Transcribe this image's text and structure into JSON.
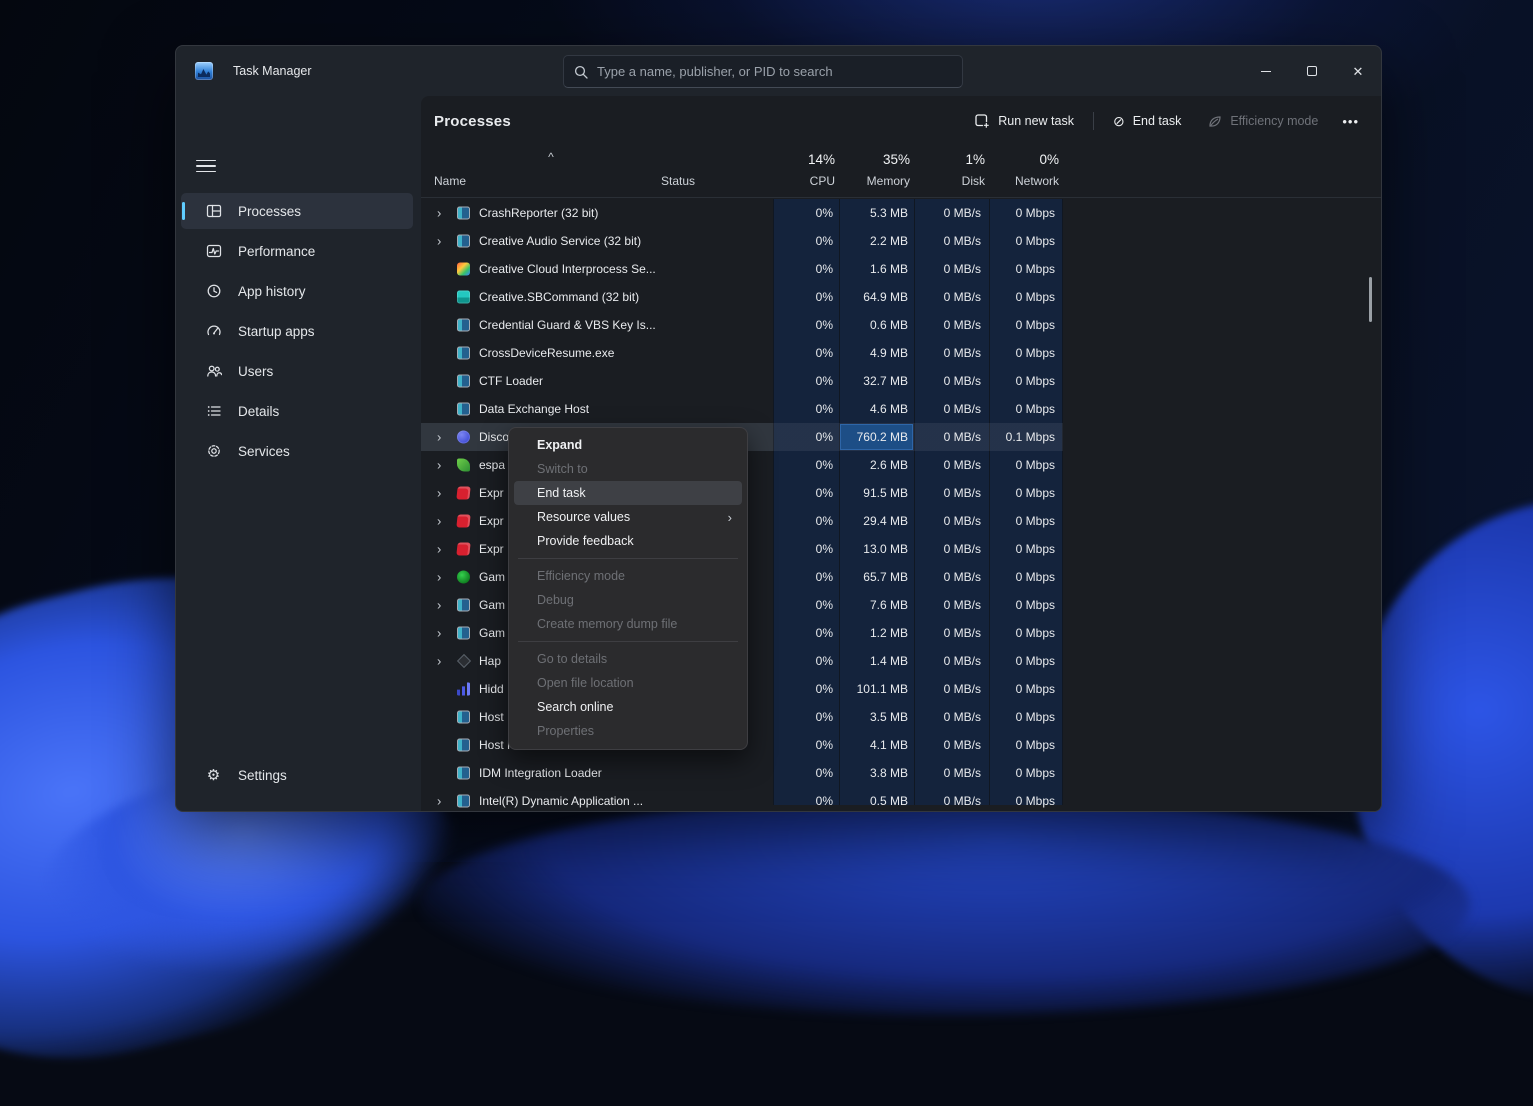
{
  "window": {
    "title": "Task Manager",
    "controls": {
      "minimize": "minimize",
      "maximize": "maximize",
      "close": "✕"
    }
  },
  "search": {
    "placeholder": "Type a name, publisher, or PID to search"
  },
  "sidebar": {
    "items": [
      {
        "id": "processes",
        "label": "Processes",
        "selected": true
      },
      {
        "id": "performance",
        "label": "Performance",
        "selected": false
      },
      {
        "id": "app-history",
        "label": "App history",
        "selected": false
      },
      {
        "id": "startup-apps",
        "label": "Startup apps",
        "selected": false
      },
      {
        "id": "users",
        "label": "Users",
        "selected": false
      },
      {
        "id": "details",
        "label": "Details",
        "selected": false
      },
      {
        "id": "services",
        "label": "Services",
        "selected": false
      }
    ],
    "settings_label": "Settings"
  },
  "header": {
    "title": "Processes"
  },
  "toolbar": {
    "run_new_task": "Run new task",
    "end_task": "End task",
    "efficiency_mode": "Efficiency mode",
    "efficiency_mode_disabled": true,
    "more": "•••"
  },
  "table": {
    "columns": {
      "name": "Name",
      "status": "Status",
      "cpu": {
        "percent": "14%",
        "label": "CPU"
      },
      "memory": {
        "percent": "35%",
        "label": "Memory"
      },
      "disk": {
        "percent": "1%",
        "label": "Disk"
      },
      "network": {
        "percent": "0%",
        "label": "Network"
      }
    },
    "rows": [
      {
        "name": "CrashReporter (32 bit)",
        "icon": "win",
        "chevron": true,
        "cpu": "0%",
        "memory": "5.3 MB",
        "disk": "0 MB/s",
        "network": "0 Mbps",
        "selected": false,
        "memory_hot": false
      },
      {
        "name": "Creative Audio Service (32 bit)",
        "icon": "win",
        "chevron": true,
        "cpu": "0%",
        "memory": "2.2 MB",
        "disk": "0 MB/s",
        "network": "0 Mbps",
        "selected": false,
        "memory_hot": false
      },
      {
        "name": "Creative Cloud Interprocess Se...",
        "icon": "cc",
        "chevron": false,
        "cpu": "0%",
        "memory": "1.6 MB",
        "disk": "0 MB/s",
        "network": "0 Mbps",
        "selected": false,
        "memory_hot": false
      },
      {
        "name": "Creative.SBCommand (32 bit)",
        "icon": "teal",
        "chevron": false,
        "cpu": "0%",
        "memory": "64.9 MB",
        "disk": "0 MB/s",
        "network": "0 Mbps",
        "selected": false,
        "memory_hot": false
      },
      {
        "name": "Credential Guard & VBS Key Is...",
        "icon": "win",
        "chevron": false,
        "cpu": "0%",
        "memory": "0.6 MB",
        "disk": "0 MB/s",
        "network": "0 Mbps",
        "selected": false,
        "memory_hot": false
      },
      {
        "name": "CrossDeviceResume.exe",
        "icon": "win",
        "chevron": false,
        "cpu": "0%",
        "memory": "4.9 MB",
        "disk": "0 MB/s",
        "network": "0 Mbps",
        "selected": false,
        "memory_hot": false
      },
      {
        "name": "CTF Loader",
        "icon": "win",
        "chevron": false,
        "cpu": "0%",
        "memory": "32.7 MB",
        "disk": "0 MB/s",
        "network": "0 Mbps",
        "selected": false,
        "memory_hot": false
      },
      {
        "name": "Data Exchange Host",
        "icon": "win",
        "chevron": false,
        "cpu": "0%",
        "memory": "4.6 MB",
        "disk": "0 MB/s",
        "network": "0 Mbps",
        "selected": false,
        "memory_hot": false
      },
      {
        "name": "Discord",
        "icon": "discord",
        "chevron": true,
        "cpu": "0%",
        "memory": "760.2 MB",
        "disk": "0 MB/s",
        "network": "0.1 Mbps",
        "selected": true,
        "memory_hot": true
      },
      {
        "name": "espa",
        "icon": "green",
        "chevron": true,
        "cpu": "0%",
        "memory": "2.6 MB",
        "disk": "0 MB/s",
        "network": "0 Mbps",
        "selected": false,
        "memory_hot": false
      },
      {
        "name": "Expr",
        "icon": "red",
        "chevron": true,
        "cpu": "0%",
        "memory": "91.5 MB",
        "disk": "0 MB/s",
        "network": "0 Mbps",
        "selected": false,
        "memory_hot": false
      },
      {
        "name": "Expr",
        "icon": "red",
        "chevron": true,
        "cpu": "0%",
        "memory": "29.4 MB",
        "disk": "0 MB/s",
        "network": "0 Mbps",
        "selected": false,
        "memory_hot": false
      },
      {
        "name": "Expr",
        "icon": "red",
        "chevron": true,
        "cpu": "0%",
        "memory": "13.0 MB",
        "disk": "0 MB/s",
        "network": "0 Mbps",
        "selected": false,
        "memory_hot": false
      },
      {
        "name": "Gam",
        "icon": "xbox",
        "chevron": true,
        "cpu": "0%",
        "memory": "65.7 MB",
        "disk": "0 MB/s",
        "network": "0 Mbps",
        "selected": false,
        "memory_hot": false
      },
      {
        "name": "Gam",
        "icon": "win",
        "chevron": true,
        "cpu": "0%",
        "memory": "7.6 MB",
        "disk": "0 MB/s",
        "network": "0 Mbps",
        "selected": false,
        "memory_hot": false
      },
      {
        "name": "Gam",
        "icon": "win",
        "chevron": true,
        "cpu": "0%",
        "memory": "1.2 MB",
        "disk": "0 MB/s",
        "network": "0 Mbps",
        "selected": false,
        "memory_hot": false
      },
      {
        "name": "Hap",
        "icon": "haptic",
        "chevron": true,
        "cpu": "0%",
        "memory": "1.4 MB",
        "disk": "0 MB/s",
        "network": "0 Mbps",
        "selected": false,
        "memory_hot": false
      },
      {
        "name": "Hidd",
        "icon": "bars",
        "chevron": false,
        "cpu": "0%",
        "memory": "101.1 MB",
        "disk": "0 MB/s",
        "network": "0 Mbps",
        "selected": false,
        "memory_hot": false
      },
      {
        "name": "Host",
        "icon": "win",
        "chevron": false,
        "cpu": "0%",
        "memory": "3.5 MB",
        "disk": "0 MB/s",
        "network": "0 Mbps",
        "selected": false,
        "memory_hot": false
      },
      {
        "name": "Host Process for Windows Tasks",
        "icon": "win",
        "chevron": false,
        "cpu": "0%",
        "memory": "4.1 MB",
        "disk": "0 MB/s",
        "network": "0 Mbps",
        "selected": false,
        "memory_hot": false
      },
      {
        "name": "IDM Integration Loader",
        "icon": "win",
        "chevron": false,
        "cpu": "0%",
        "memory": "3.8 MB",
        "disk": "0 MB/s",
        "network": "0 Mbps",
        "selected": false,
        "memory_hot": false
      },
      {
        "name": "Intel(R) Dynamic Application ...",
        "icon": "win",
        "chevron": true,
        "cpu": "0%",
        "memory": "0.5 MB",
        "disk": "0 MB/s",
        "network": "0 Mbps",
        "selected": false,
        "memory_hot": false
      }
    ]
  },
  "context_menu": {
    "items": [
      {
        "label": "Expand",
        "enabled": true,
        "hovered": false,
        "submenu": false,
        "strong": true
      },
      {
        "label": "Switch to",
        "enabled": false,
        "hovered": false,
        "submenu": false,
        "strong": false
      },
      {
        "label": "End task",
        "enabled": true,
        "hovered": true,
        "submenu": false,
        "strong": false
      },
      {
        "label": "Resource values",
        "enabled": true,
        "hovered": false,
        "submenu": true,
        "strong": false
      },
      {
        "label": "Provide feedback",
        "enabled": true,
        "hovered": false,
        "submenu": false,
        "strong": false
      },
      {
        "separator": true
      },
      {
        "label": "Efficiency mode",
        "enabled": false,
        "hovered": false,
        "submenu": false,
        "strong": false
      },
      {
        "label": "Debug",
        "enabled": false,
        "hovered": false,
        "submenu": false,
        "strong": false
      },
      {
        "label": "Create memory dump file",
        "enabled": false,
        "hovered": false,
        "submenu": false,
        "strong": false
      },
      {
        "separator": true
      },
      {
        "label": "Go to details",
        "enabled": false,
        "hovered": false,
        "submenu": false,
        "strong": false
      },
      {
        "label": "Open file location",
        "enabled": false,
        "hovered": false,
        "submenu": false,
        "strong": false
      },
      {
        "label": "Search online",
        "enabled": true,
        "hovered": false,
        "submenu": false,
        "strong": false
      },
      {
        "label": "Properties",
        "enabled": false,
        "hovered": false,
        "submenu": false,
        "strong": false
      }
    ]
  },
  "icons": {
    "expand_chevron": "›",
    "sort_ascending": "^",
    "end_task_glyph": "⊘",
    "submenu_arrow": "›",
    "settings_gear": "⚙",
    "close_glyph": "✕"
  },
  "colors": {
    "accent": "#60cdff",
    "column_tint": "#14233c",
    "memory_hot_cell": "#1d4e86",
    "menu_background": "#2b2b2d"
  }
}
